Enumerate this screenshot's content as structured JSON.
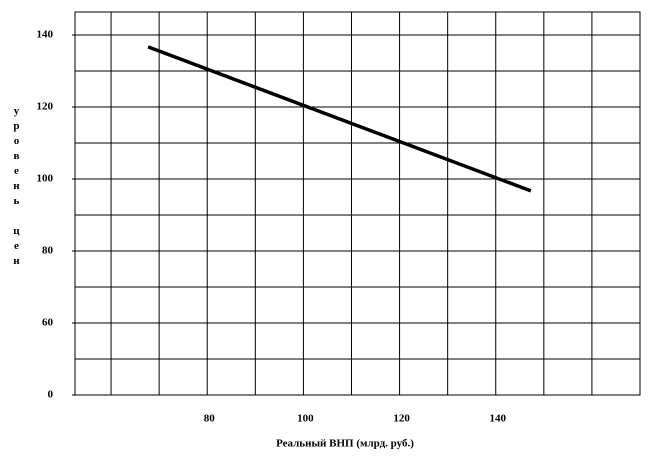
{
  "chart_data": {
    "type": "line",
    "x_label": "Реальный ВНП (млрд. руб.)",
    "y_label": "уровень цен",
    "series": [
      {
        "color": "#000000",
        "x": [
          67.7,
          147.3
        ],
        "values": [
          136.7,
          96.7
        ]
      }
    ],
    "xlim": [
      52.5,
      170
    ],
    "ylim": [
      40,
      146.4
    ],
    "xticks": [
      80,
      100,
      120,
      140
    ],
    "yticks": [
      {
        "value": 40,
        "label": "0"
      },
      60,
      80,
      100,
      120,
      140
    ],
    "xgrid": [
      60,
      70,
      80,
      90,
      100,
      110,
      120,
      130,
      140,
      150,
      160,
      170
    ],
    "ygrid": [
      50,
      60,
      70,
      80,
      90,
      100,
      110,
      120,
      130,
      140
    ],
    "grid": true
  }
}
